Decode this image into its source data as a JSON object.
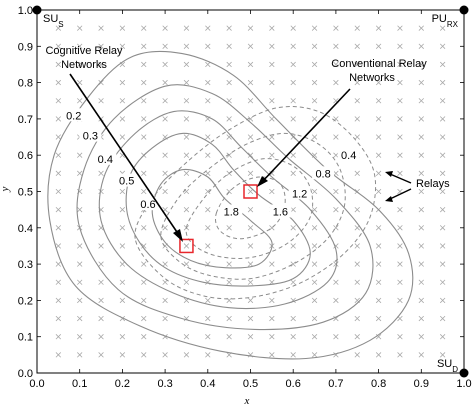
{
  "chart_data": {
    "type": "contour",
    "xlabel": "x",
    "ylabel": "y",
    "xlim": [
      0,
      1
    ],
    "ylim": [
      0,
      1
    ],
    "xticks": [
      "0.0",
      "0.1",
      "0.2",
      "0.3",
      "0.4",
      "0.5",
      "0.6",
      "0.7",
      "0.8",
      "0.9",
      "1.0"
    ],
    "yticks": [
      "0.0",
      "0.1",
      "0.2",
      "0.3",
      "0.4",
      "0.5",
      "0.6",
      "0.7",
      "0.8",
      "0.9",
      "1.0"
    ],
    "relay_grid": {
      "start": 0.05,
      "step": 0.05,
      "count": 19,
      "marker": "x"
    },
    "corner_nodes": [
      {
        "label": "SU",
        "sub": "S",
        "x": 0.0,
        "y": 1.0
      },
      {
        "label": "PU",
        "sub": "RX",
        "x": 1.0,
        "y": 1.0
      },
      {
        "label": "SU",
        "sub": "D",
        "x": 1.0,
        "y": 0.0
      }
    ],
    "cognitive_contours": [
      {
        "level": "0.2",
        "label_pos": [
          0.086,
          0.71
        ],
        "points": [
          [
            0.03,
            0.42
          ],
          [
            0.04,
            0.6
          ],
          [
            0.12,
            0.76
          ],
          [
            0.22,
            0.87
          ],
          [
            0.34,
            0.88
          ],
          [
            0.46,
            0.82
          ],
          [
            0.56,
            0.7
          ],
          [
            0.68,
            0.56
          ],
          [
            0.8,
            0.45
          ],
          [
            0.87,
            0.33
          ],
          [
            0.87,
            0.2
          ],
          [
            0.78,
            0.09
          ],
          [
            0.63,
            0.04
          ],
          [
            0.43,
            0.06
          ],
          [
            0.24,
            0.13
          ],
          [
            0.09,
            0.24
          ],
          [
            0.03,
            0.42
          ]
        ]
      },
      {
        "level": "0.3",
        "label_pos": [
          0.125,
          0.654
        ],
        "points": [
          [
            0.1,
            0.4
          ],
          [
            0.11,
            0.56
          ],
          [
            0.18,
            0.7
          ],
          [
            0.3,
            0.79
          ],
          [
            0.41,
            0.77
          ],
          [
            0.5,
            0.69
          ],
          [
            0.59,
            0.59
          ],
          [
            0.7,
            0.48
          ],
          [
            0.78,
            0.35
          ],
          [
            0.77,
            0.22
          ],
          [
            0.67,
            0.14
          ],
          [
            0.51,
            0.12
          ],
          [
            0.34,
            0.15
          ],
          [
            0.19,
            0.23
          ],
          [
            0.1,
            0.4
          ]
        ]
      },
      {
        "level": "0.4",
        "label_pos": [
          0.16,
          0.59
        ],
        "points": [
          [
            0.15,
            0.42
          ],
          [
            0.16,
            0.55
          ],
          [
            0.23,
            0.66
          ],
          [
            0.32,
            0.72
          ],
          [
            0.41,
            0.7
          ],
          [
            0.48,
            0.62
          ],
          [
            0.55,
            0.54
          ],
          [
            0.64,
            0.45
          ],
          [
            0.7,
            0.34
          ],
          [
            0.68,
            0.25
          ],
          [
            0.58,
            0.19
          ],
          [
            0.45,
            0.18
          ],
          [
            0.32,
            0.22
          ],
          [
            0.21,
            0.3
          ],
          [
            0.15,
            0.42
          ]
        ]
      },
      {
        "level": "0.5",
        "label_pos": [
          0.21,
          0.53
        ],
        "points": [
          [
            0.21,
            0.45
          ],
          [
            0.22,
            0.55
          ],
          [
            0.27,
            0.62
          ],
          [
            0.34,
            0.66
          ],
          [
            0.41,
            0.63
          ],
          [
            0.46,
            0.56
          ],
          [
            0.52,
            0.49
          ],
          [
            0.6,
            0.42
          ],
          [
            0.64,
            0.33
          ],
          [
            0.6,
            0.26
          ],
          [
            0.5,
            0.24
          ],
          [
            0.39,
            0.25
          ],
          [
            0.3,
            0.29
          ],
          [
            0.24,
            0.36
          ],
          [
            0.21,
            0.45
          ]
        ]
      },
      {
        "level": "0.6",
        "label_pos": [
          0.26,
          0.465
        ],
        "points": [
          [
            0.27,
            0.44
          ],
          [
            0.29,
            0.52
          ],
          [
            0.34,
            0.56
          ],
          [
            0.4,
            0.54
          ],
          [
            0.44,
            0.48
          ],
          [
            0.5,
            0.42
          ],
          [
            0.55,
            0.36
          ],
          [
            0.52,
            0.3
          ],
          [
            0.44,
            0.29
          ],
          [
            0.36,
            0.31
          ],
          [
            0.3,
            0.36
          ],
          [
            0.27,
            0.44
          ]
        ]
      }
    ],
    "conventional_contours": [
      {
        "level": "0.4",
        "label_pos": [
          0.73,
          0.6
        ],
        "points": [
          [
            0.23,
            0.37
          ],
          [
            0.27,
            0.48
          ],
          [
            0.35,
            0.58
          ],
          [
            0.45,
            0.67
          ],
          [
            0.56,
            0.73
          ],
          [
            0.66,
            0.72
          ],
          [
            0.74,
            0.65
          ],
          [
            0.79,
            0.55
          ],
          [
            0.78,
            0.43
          ],
          [
            0.72,
            0.33
          ],
          [
            0.62,
            0.25
          ],
          [
            0.51,
            0.21
          ],
          [
            0.4,
            0.21
          ],
          [
            0.3,
            0.26
          ],
          [
            0.23,
            0.37
          ]
        ]
      },
      {
        "level": "0.8",
        "label_pos": [
          0.67,
          0.55
        ],
        "points": [
          [
            0.29,
            0.38
          ],
          [
            0.33,
            0.48
          ],
          [
            0.4,
            0.56
          ],
          [
            0.49,
            0.63
          ],
          [
            0.58,
            0.66
          ],
          [
            0.66,
            0.63
          ],
          [
            0.71,
            0.56
          ],
          [
            0.72,
            0.46
          ],
          [
            0.68,
            0.37
          ],
          [
            0.6,
            0.3
          ],
          [
            0.5,
            0.26
          ],
          [
            0.4,
            0.27
          ],
          [
            0.33,
            0.31
          ],
          [
            0.29,
            0.38
          ]
        ]
      },
      {
        "level": "1.2",
        "label_pos": [
          0.615,
          0.495
        ],
        "points": [
          [
            0.35,
            0.4
          ],
          [
            0.39,
            0.48
          ],
          [
            0.45,
            0.55
          ],
          [
            0.53,
            0.59
          ],
          [
            0.6,
            0.57
          ],
          [
            0.64,
            0.51
          ],
          [
            0.64,
            0.43
          ],
          [
            0.59,
            0.36
          ],
          [
            0.51,
            0.32
          ],
          [
            0.43,
            0.32
          ],
          [
            0.37,
            0.35
          ],
          [
            0.35,
            0.4
          ]
        ]
      },
      {
        "level": "1.6",
        "label_pos": [
          0.57,
          0.445
        ],
        "points": [
          [
            0.42,
            0.44
          ],
          [
            0.46,
            0.51
          ],
          [
            0.52,
            0.54
          ],
          [
            0.57,
            0.52
          ],
          [
            0.58,
            0.46
          ],
          [
            0.55,
            0.4
          ],
          [
            0.48,
            0.37
          ],
          [
            0.43,
            0.39
          ],
          [
            0.42,
            0.44
          ]
        ]
      },
      {
        "level": "1.8",
        "label_pos": [
          0.455,
          0.445
        ],
        "points": []
      }
    ],
    "highlighted_relays": [
      {
        "x": 0.35,
        "y": 0.35
      },
      {
        "x": 0.5,
        "y": 0.5
      }
    ]
  },
  "annotations": {
    "cognitive_line1": "Cognitive Relay",
    "cognitive_line2": "Networks",
    "conventional_line1": "Conventional Relay",
    "conventional_line2": "Networks",
    "relays": "Relays"
  },
  "colors": {
    "highlight": "#e8262b",
    "contour": "#8c8c8c",
    "relay_marker": "#a8a8a8"
  }
}
